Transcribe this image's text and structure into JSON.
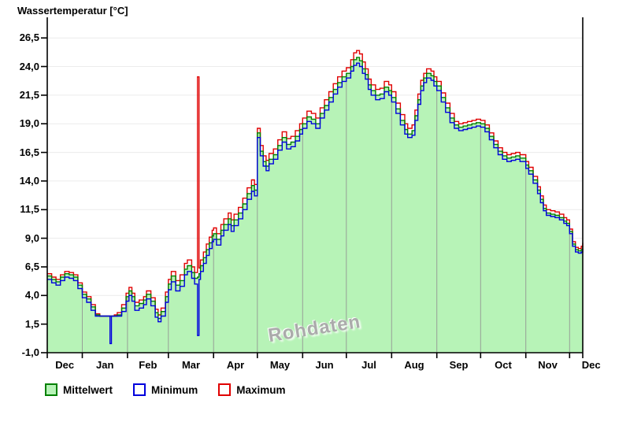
{
  "chart": {
    "title": "Wassertemperatur [°C]",
    "watermark": "Rohdaten",
    "legend": [
      {
        "label": "Mittelwert",
        "swatch_fill": "#b7f3b7",
        "swatch_border": "#008000"
      },
      {
        "label": "Minimum",
        "swatch_fill": "#ffffff",
        "swatch_border": "#0000dd"
      },
      {
        "label": "Maximum",
        "swatch_fill": "#ffffff",
        "swatch_border": "#e00000"
      }
    ]
  },
  "chart_data": {
    "type": "area",
    "style": "step-after",
    "title": "Wassertemperatur [°C]",
    "xlabel": "",
    "ylabel": "Wassertemperatur [°C]",
    "ylim": [
      -1.0,
      28.3
    ],
    "grid": {
      "horizontal": true,
      "vertical_inside_area": true
    },
    "legend_position": "bottom-left",
    "y_ticks": {
      "values": [
        -1.0,
        1.5,
        4.0,
        6.5,
        9.0,
        11.5,
        14.0,
        16.5,
        19.0,
        21.5,
        24.0,
        26.5
      ],
      "labels": [
        "-1,0",
        "1,5",
        "4,0",
        "6,5",
        "9,0",
        "11,5",
        "14,0",
        "16,5",
        "19,0",
        "21,5",
        "24,0",
        "26,5"
      ]
    },
    "months": [
      "Dec",
      "Jan",
      "Feb",
      "Mar",
      "Apr",
      "May",
      "Jun",
      "Jul",
      "Aug",
      "Sep",
      "Oct",
      "Nov",
      "Dec"
    ],
    "month_start_days": [
      0,
      24,
      55,
      83,
      114,
      144,
      175,
      205,
      236,
      267,
      297,
      328,
      358
    ],
    "end_day": 367,
    "days": [
      0,
      3,
      6,
      9,
      12,
      15,
      18,
      21,
      24,
      27,
      30,
      33,
      36,
      39,
      42,
      43,
      44,
      46,
      48,
      51,
      54,
      56,
      58,
      60,
      63,
      66,
      68,
      71,
      74,
      76,
      78,
      81,
      83,
      85,
      88,
      91,
      94,
      96,
      99,
      101,
      103,
      104,
      105,
      107,
      109,
      111,
      113,
      114,
      116,
      119,
      121,
      124,
      126,
      128,
      131,
      134,
      137,
      140,
      142,
      144,
      146,
      148,
      150,
      152,
      155,
      158,
      161,
      164,
      167,
      170,
      173,
      175,
      178,
      181,
      184,
      187,
      190,
      193,
      196,
      199,
      202,
      205,
      208,
      210,
      212,
      214,
      216,
      218,
      220,
      222,
      225,
      228,
      231,
      234,
      236,
      239,
      242,
      245,
      247,
      250,
      252,
      254,
      256,
      258,
      260,
      263,
      265,
      267,
      270,
      273,
      276,
      279,
      282,
      285,
      288,
      291,
      294,
      297,
      300,
      303,
      306,
      309,
      312,
      315,
      318,
      321,
      324,
      328,
      330,
      333,
      336,
      338,
      340,
      342,
      345,
      348,
      351,
      354,
      356,
      358,
      360,
      362,
      364,
      366,
      367
    ],
    "series": [
      {
        "name": "Mittelwert",
        "render": "area-step",
        "line_color": "#008000",
        "fill_color": "#b7f3b7",
        "values": [
          5.7,
          5.4,
          5.2,
          5.6,
          5.9,
          5.8,
          5.6,
          4.9,
          4.1,
          3.7,
          3.0,
          2.3,
          2.2,
          2.2,
          2.2,
          2.2,
          2.2,
          2.2,
          2.3,
          2.9,
          3.9,
          4.4,
          3.9,
          3.1,
          3.3,
          3.6,
          4.1,
          3.5,
          2.5,
          2.0,
          2.6,
          3.9,
          5.0,
          5.7,
          4.9,
          5.3,
          6.3,
          6.6,
          6.0,
          5.5,
          5.6,
          5.9,
          6.6,
          7.3,
          8.0,
          8.6,
          9.2,
          9.4,
          8.9,
          9.7,
          10.2,
          10.7,
          10.1,
          10.6,
          11.2,
          12.0,
          12.9,
          13.6,
          13.2,
          18.2,
          16.6,
          15.7,
          15.3,
          15.9,
          16.3,
          17.1,
          17.8,
          17.2,
          17.4,
          17.9,
          18.5,
          19.0,
          19.6,
          19.4,
          19.0,
          19.9,
          20.6,
          21.3,
          22.0,
          22.6,
          23.1,
          23.4,
          24.0,
          24.6,
          24.8,
          24.5,
          23.8,
          23.3,
          22.4,
          21.9,
          21.5,
          21.6,
          22.2,
          21.9,
          21.3,
          20.3,
          19.3,
          18.5,
          18.1,
          18.4,
          19.7,
          21.1,
          22.3,
          23.0,
          23.4,
          23.2,
          22.7,
          22.3,
          21.3,
          20.4,
          19.5,
          18.9,
          18.7,
          18.8,
          18.9,
          19.0,
          19.1,
          19.0,
          18.6,
          17.9,
          17.2,
          16.6,
          16.2,
          16.0,
          16.1,
          16.2,
          16.0,
          15.4,
          14.9,
          14.1,
          13.2,
          12.4,
          11.6,
          11.2,
          11.1,
          11.0,
          10.8,
          10.5,
          10.3,
          9.6,
          8.5,
          8.0,
          7.9,
          8.0,
          8.3
        ]
      },
      {
        "name": "Minimum",
        "render": "step",
        "line_color": "#0000dd",
        "values": [
          5.4,
          5.1,
          4.9,
          5.3,
          5.6,
          5.5,
          5.3,
          4.6,
          3.8,
          3.4,
          2.7,
          2.2,
          2.2,
          2.2,
          2.2,
          -0.2,
          2.2,
          2.2,
          2.2,
          2.6,
          3.5,
          4.0,
          3.5,
          2.7,
          2.9,
          3.2,
          3.7,
          3.1,
          2.1,
          1.7,
          2.2,
          3.4,
          4.5,
          5.2,
          4.4,
          4.8,
          5.8,
          6.1,
          5.5,
          5.0,
          0.5,
          5.4,
          6.1,
          6.8,
          7.5,
          8.1,
          8.7,
          8.9,
          8.4,
          9.2,
          9.7,
          10.2,
          9.6,
          10.1,
          10.7,
          11.5,
          12.4,
          13.1,
          12.7,
          17.8,
          16.2,
          15.3,
          14.9,
          15.5,
          15.9,
          16.7,
          17.4,
          16.8,
          17.0,
          17.5,
          18.1,
          18.6,
          19.2,
          19.0,
          18.6,
          19.5,
          20.2,
          20.9,
          21.6,
          22.2,
          22.7,
          23.0,
          23.6,
          24.1,
          24.3,
          24.0,
          23.4,
          22.9,
          22.0,
          21.5,
          21.1,
          21.2,
          21.8,
          21.5,
          20.9,
          19.9,
          18.9,
          18.1,
          17.8,
          18.0,
          19.3,
          20.7,
          21.9,
          22.6,
          23.0,
          22.8,
          22.3,
          21.9,
          20.9,
          20.0,
          19.1,
          18.6,
          18.4,
          18.5,
          18.6,
          18.7,
          18.8,
          18.7,
          18.3,
          17.6,
          16.9,
          16.3,
          15.9,
          15.7,
          15.8,
          15.9,
          15.7,
          15.1,
          14.6,
          13.8,
          12.9,
          12.1,
          11.4,
          11.0,
          10.9,
          10.8,
          10.6,
          10.3,
          10.1,
          9.4,
          8.3,
          7.8,
          7.7,
          7.8,
          8.1
        ]
      },
      {
        "name": "Maximum",
        "render": "step",
        "line_color": "#e00000",
        "values": [
          5.9,
          5.6,
          5.4,
          5.8,
          6.1,
          6.0,
          5.8,
          5.1,
          4.3,
          3.9,
          3.2,
          2.4,
          2.2,
          2.2,
          2.2,
          2.2,
          2.2,
          2.3,
          2.5,
          3.2,
          4.2,
          4.7,
          4.2,
          3.4,
          3.6,
          3.9,
          4.4,
          3.8,
          2.8,
          2.3,
          2.9,
          4.3,
          5.4,
          6.1,
          5.3,
          5.8,
          6.8,
          7.1,
          6.5,
          6.0,
          23.1,
          6.4,
          7.1,
          7.8,
          8.5,
          9.1,
          9.7,
          9.9,
          9.4,
          10.2,
          10.7,
          11.2,
          10.6,
          11.1,
          11.7,
          12.5,
          13.4,
          14.1,
          13.7,
          18.6,
          17.1,
          16.2,
          15.8,
          16.4,
          16.8,
          17.6,
          18.3,
          17.7,
          17.9,
          18.4,
          19.0,
          19.5,
          20.1,
          19.9,
          19.5,
          20.4,
          21.1,
          21.8,
          22.5,
          23.1,
          23.6,
          23.9,
          24.6,
          25.2,
          25.4,
          25.1,
          24.4,
          23.8,
          22.9,
          22.4,
          22.0,
          22.1,
          22.7,
          22.4,
          21.8,
          20.8,
          19.8,
          19.0,
          18.6,
          18.9,
          20.2,
          21.6,
          22.8,
          23.4,
          23.8,
          23.6,
          23.1,
          22.7,
          21.7,
          20.8,
          19.9,
          19.2,
          19.0,
          19.1,
          19.2,
          19.3,
          19.4,
          19.3,
          18.9,
          18.2,
          17.5,
          16.9,
          16.5,
          16.3,
          16.4,
          16.5,
          16.3,
          15.7,
          15.2,
          14.4,
          13.5,
          12.7,
          11.9,
          11.5,
          11.4,
          11.3,
          11.1,
          10.8,
          10.6,
          9.8,
          8.7,
          8.2,
          8.1,
          8.3,
          8.6
        ]
      }
    ],
    "annotations": [
      {
        "text": "Rohdaten",
        "role": "watermark",
        "position": "center-bottom"
      }
    ]
  }
}
